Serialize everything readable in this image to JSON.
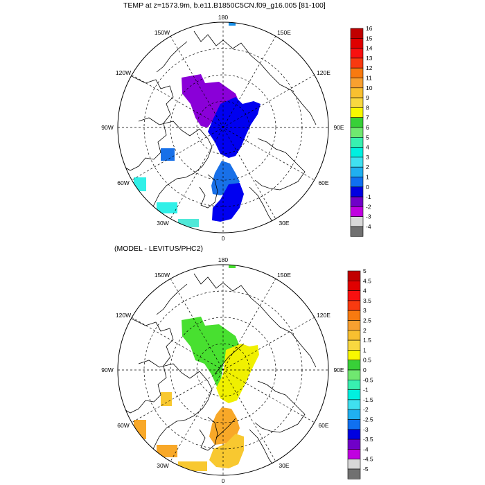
{
  "panels": [
    {
      "title": "TEMP at z=1573.9m, b.e11.B1850C5CN.f09_g16.005 [81-100]",
      "lon_labels": {
        "top": "180",
        "bottom": "0",
        "left": "90W",
        "right": "90E",
        "upper_left_a": "150W",
        "upper_left_b": "120W",
        "upper_right_a": "150E",
        "upper_right_b": "120E",
        "lower_left_a": "60W",
        "lower_left_b": "30W",
        "lower_right_a": "60E",
        "lower_right_b": "30E"
      },
      "colorbar": {
        "labels": [
          "16",
          "15",
          "14",
          "13",
          "12",
          "11",
          "10",
          "9",
          "8",
          "7",
          "6",
          "5",
          "4",
          "3",
          "2",
          "1",
          "0",
          "-1",
          "-2",
          "-3",
          "-4"
        ],
        "colors": [
          "#c00000",
          "#e00000",
          "#f81010",
          "#f83a10",
          "#f87a10",
          "#f8a030",
          "#f8c030",
          "#f8d840",
          "#f8f800",
          "#38d038",
          "#70e870",
          "#38f0b0",
          "#00f0e0",
          "#40e0f0",
          "#20b0f0",
          "#1070f0",
          "#0000e0",
          "#7000c8",
          "#c000e0",
          "#d8d8d8",
          "#707070"
        ]
      }
    },
    {
      "title": "(MODEL - LEVITUS/PHC2)",
      "lon_labels": {
        "top": "180",
        "bottom": "0",
        "left": "90W",
        "right": "90E",
        "upper_left_a": "150W",
        "upper_left_b": "120W",
        "upper_right_a": "150E",
        "upper_right_b": "120E",
        "lower_left_a": "60W",
        "lower_left_b": "30W",
        "lower_right_a": "60E",
        "lower_right_b": "30E"
      },
      "colorbar": {
        "labels": [
          "5",
          "4.5",
          "4",
          "3.5",
          "3",
          "2.5",
          "2",
          "1.5",
          "1",
          "0.5",
          "0",
          "-0.5",
          "-1",
          "-1.5",
          "-2",
          "-2.5",
          "-3",
          "-3.5",
          "-4",
          "-4.5",
          "-5"
        ],
        "colors": [
          "#c00000",
          "#e00000",
          "#f81010",
          "#f83a10",
          "#f87a10",
          "#f8a030",
          "#f8c030",
          "#f8d840",
          "#f8f800",
          "#38d038",
          "#70e870",
          "#38f0b0",
          "#00f0e0",
          "#40e0f0",
          "#20b0f0",
          "#1070f0",
          "#0000e0",
          "#7000c8",
          "#c000e0",
          "#d8d8d8",
          "#707070"
        ]
      }
    }
  ],
  "fields": {
    "panel1": {
      "purple": "#8a00d8",
      "blue": "#0000f0",
      "mid_blue": "#1870e8",
      "cyan": "#30f0e8",
      "light_cyan": "#50e8d8"
    },
    "panel2": {
      "green": "#48e030",
      "yellow": "#f0f000",
      "orange": "#f8a828",
      "gold": "#f8c830"
    }
  }
}
